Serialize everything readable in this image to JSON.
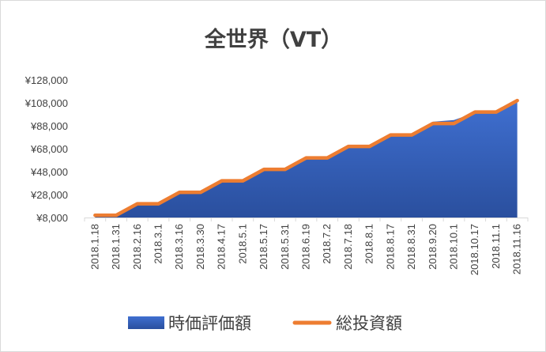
{
  "chart_data": {
    "type": "area",
    "title": "全世界（VT）",
    "xlabel": "",
    "ylabel": "",
    "ylim": [
      8000,
      128000
    ],
    "yticks": [
      8000,
      28000,
      48000,
      68000,
      88000,
      108000,
      128000
    ],
    "ytick_labels": [
      "¥8,000",
      "¥28,000",
      "¥48,000",
      "¥68,000",
      "¥88,000",
      "¥108,000",
      "¥128,000"
    ],
    "categories": [
      "2018.1.18",
      "2018.1.31",
      "2018.2.16",
      "2018.3.1",
      "2018.3.16",
      "2018.3.30",
      "2018.4.17",
      "2018.5.1",
      "2018.5.17",
      "2018.5.31",
      "2018.6.19",
      "2018.7.2",
      "2018.7.18",
      "2018.8.1",
      "2018.8.17",
      "2018.8.31",
      "2018.9.20",
      "2018.10.1",
      "2018.10.17",
      "2018.11.1",
      "2018.11.16"
    ],
    "series": [
      {
        "name": "時価評価額",
        "kind": "area",
        "color": "#4472C4",
        "values": [
          10000,
          10000,
          19500,
          19500,
          29500,
          29500,
          39500,
          39500,
          49500,
          50000,
          59500,
          60000,
          70000,
          70000,
          79500,
          81000,
          91500,
          93000,
          99500,
          100500,
          109000
        ]
      },
      {
        "name": "総投資額",
        "kind": "line",
        "color": "#ED7D31",
        "values": [
          10000,
          10000,
          20000,
          20000,
          30000,
          30000,
          40000,
          40000,
          50000,
          50000,
          60000,
          60000,
          70000,
          70000,
          80000,
          80000,
          90000,
          90000,
          100000,
          100000,
          110000
        ]
      }
    ],
    "grid": false,
    "legend_position": "bottom"
  }
}
